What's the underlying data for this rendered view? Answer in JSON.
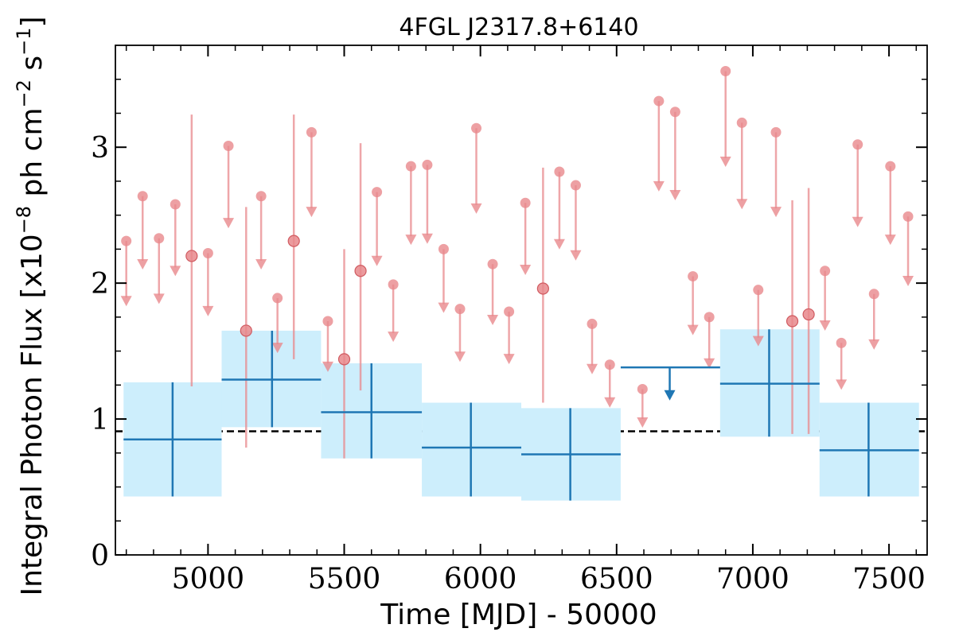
{
  "chart_data": {
    "type": "scatter",
    "title": "4FGL J2317.8+6140",
    "xlabel": "Time [MJD] - 50000",
    "ylabel_prefix": "Integral Photon Flux [x10",
    "ylabel_exp1": "−8",
    "ylabel_mid": " ph cm",
    "ylabel_exp2": "−2",
    "ylabel_mid2": " s",
    "ylabel_exp3": "−1",
    "ylabel_suffix": "]",
    "xlim": [
      4660,
      7640
    ],
    "ylim": [
      0,
      3.75
    ],
    "xticks": [
      5000,
      5500,
      6000,
      6500,
      7000,
      7500
    ],
    "xtick_labels": [
      "5000",
      "5500",
      "6000",
      "6500",
      "7000",
      "7500"
    ],
    "yticks": [
      0,
      1,
      2,
      3
    ],
    "ytick_labels": [
      "0",
      "1",
      "2",
      "3"
    ],
    "mean_flux": 0.91,
    "colors": {
      "coarse": "#1f77b4",
      "band": "#cdeefc",
      "fine": "#e8888c",
      "mean_line": "#000000"
    },
    "coarse_bins": [
      {
        "x": 4870,
        "x_lo": 4690,
        "x_hi": 5050,
        "y": 0.85,
        "y_lo": 0.43,
        "y_hi": 1.27,
        "upper_limit": false
      },
      {
        "x": 5235,
        "x_lo": 5050,
        "x_hi": 5415,
        "y": 1.29,
        "y_lo": 0.94,
        "y_hi": 1.65,
        "upper_limit": false
      },
      {
        "x": 5600,
        "x_lo": 5415,
        "x_hi": 5785,
        "y": 1.05,
        "y_lo": 0.71,
        "y_hi": 1.41,
        "upper_limit": false
      },
      {
        "x": 5965,
        "x_lo": 5785,
        "x_hi": 6150,
        "y": 0.79,
        "y_lo": 0.43,
        "y_hi": 1.12,
        "upper_limit": false
      },
      {
        "x": 6330,
        "x_lo": 6150,
        "x_hi": 6515,
        "y": 0.74,
        "y_lo": 0.4,
        "y_hi": 1.08,
        "upper_limit": false
      },
      {
        "x": 6695,
        "x_lo": 6515,
        "x_hi": 6880,
        "y": 1.38,
        "upper_limit": true
      },
      {
        "x": 7060,
        "x_lo": 6880,
        "x_hi": 7245,
        "y": 1.26,
        "y_lo": 0.87,
        "y_hi": 1.66,
        "upper_limit": false
      },
      {
        "x": 7425,
        "x_lo": 7245,
        "x_hi": 7610,
        "y": 0.77,
        "y_lo": 0.43,
        "y_hi": 1.12,
        "upper_limit": false
      }
    ],
    "fine_points": [
      {
        "x": 4700,
        "y": 2.31,
        "upper_limit": true
      },
      {
        "x": 4760,
        "y": 2.64,
        "upper_limit": true
      },
      {
        "x": 4820,
        "y": 2.33,
        "upper_limit": true
      },
      {
        "x": 4880,
        "y": 2.58,
        "upper_limit": true
      },
      {
        "x": 4940,
        "y": 2.2,
        "y_lo": 1.24,
        "y_hi": 3.24,
        "upper_limit": false
      },
      {
        "x": 5000,
        "y": 2.22,
        "upper_limit": true
      },
      {
        "x": 5075,
        "y": 3.01,
        "upper_limit": true
      },
      {
        "x": 5140,
        "y": 1.65,
        "y_lo": 0.79,
        "y_hi": 2.56,
        "upper_limit": false
      },
      {
        "x": 5195,
        "y": 2.64,
        "upper_limit": true
      },
      {
        "x": 5255,
        "y": 1.89,
        "upper_limit": true
      },
      {
        "x": 5315,
        "y": 2.31,
        "y_lo": 1.44,
        "y_hi": 3.24,
        "upper_limit": false
      },
      {
        "x": 5380,
        "y": 3.11,
        "upper_limit": true
      },
      {
        "x": 5440,
        "y": 1.72,
        "upper_limit": true
      },
      {
        "x": 5500,
        "y": 1.44,
        "y_lo": 0.71,
        "y_hi": 2.25,
        "upper_limit": false
      },
      {
        "x": 5560,
        "y": 2.09,
        "y_lo": 1.21,
        "y_hi": 3.03,
        "upper_limit": false
      },
      {
        "x": 5620,
        "y": 2.67,
        "upper_limit": true
      },
      {
        "x": 5680,
        "y": 1.99,
        "upper_limit": true
      },
      {
        "x": 5745,
        "y": 2.86,
        "upper_limit": true
      },
      {
        "x": 5805,
        "y": 2.87,
        "upper_limit": true
      },
      {
        "x": 5865,
        "y": 2.25,
        "upper_limit": true
      },
      {
        "x": 5925,
        "y": 1.81,
        "upper_limit": true
      },
      {
        "x": 5985,
        "y": 3.14,
        "upper_limit": true
      },
      {
        "x": 6045,
        "y": 2.14,
        "upper_limit": true
      },
      {
        "x": 6105,
        "y": 1.79,
        "upper_limit": true
      },
      {
        "x": 6165,
        "y": 2.59,
        "upper_limit": true
      },
      {
        "x": 6230,
        "y": 1.96,
        "y_lo": 1.12,
        "y_hi": 2.85,
        "upper_limit": false
      },
      {
        "x": 6290,
        "y": 2.82,
        "upper_limit": true
      },
      {
        "x": 6350,
        "y": 2.72,
        "upper_limit": true
      },
      {
        "x": 6410,
        "y": 1.7,
        "upper_limit": true
      },
      {
        "x": 6475,
        "y": 1.4,
        "upper_limit": true
      },
      {
        "x": 6595,
        "y": 1.22,
        "upper_limit": true
      },
      {
        "x": 6655,
        "y": 3.34,
        "upper_limit": true
      },
      {
        "x": 6715,
        "y": 3.26,
        "upper_limit": true
      },
      {
        "x": 6780,
        "y": 2.05,
        "upper_limit": true
      },
      {
        "x": 6840,
        "y": 1.75,
        "upper_limit": true
      },
      {
        "x": 6900,
        "y": 3.56,
        "upper_limit": true
      },
      {
        "x": 6960,
        "y": 3.18,
        "upper_limit": true
      },
      {
        "x": 7020,
        "y": 1.95,
        "upper_limit": true
      },
      {
        "x": 7085,
        "y": 3.11,
        "upper_limit": true
      },
      {
        "x": 7145,
        "y": 1.72,
        "y_lo": 0.89,
        "y_hi": 2.61,
        "upper_limit": false
      },
      {
        "x": 7205,
        "y": 1.77,
        "y_lo": 0.89,
        "y_hi": 2.7,
        "upper_limit": false
      },
      {
        "x": 7265,
        "y": 2.09,
        "upper_limit": true
      },
      {
        "x": 7325,
        "y": 1.56,
        "upper_limit": true
      },
      {
        "x": 7385,
        "y": 3.02,
        "upper_limit": true
      },
      {
        "x": 7445,
        "y": 1.92,
        "upper_limit": true
      },
      {
        "x": 7505,
        "y": 2.86,
        "upper_limit": true
      },
      {
        "x": 7570,
        "y": 2.49,
        "upper_limit": true
      }
    ]
  }
}
